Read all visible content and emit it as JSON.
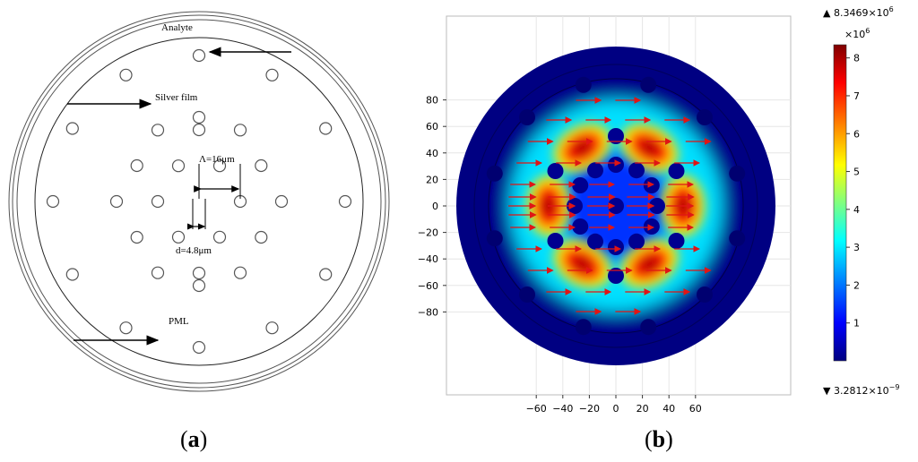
{
  "panel_a": {
    "caption_letter": "a",
    "labels": {
      "analyte": "Analyte",
      "silver_film": "Silver film",
      "pitch": "Λ=16μm",
      "hole_diameter": "d=4.8μm",
      "pml": "PML"
    }
  },
  "panel_b": {
    "caption_letter": "b",
    "x_ticks": [
      "-60",
      "-40",
      "-20",
      "0",
      "20",
      "40",
      "60"
    ],
    "y_ticks": [
      "80",
      "60",
      "40",
      "20",
      "0",
      "-20",
      "-40",
      "-60",
      "-80"
    ],
    "colorbar": {
      "max_label": "▲ 8.3469×10",
      "max_exp": "6",
      "scale_label": "×10",
      "scale_exp": "6",
      "ticks": [
        "8",
        "7",
        "6",
        "5",
        "4",
        "3",
        "2",
        "1"
      ],
      "min_label": "▼ 3.2812×10",
      "min_exp": "−9",
      "colors": [
        "#00007f",
        "#0000ff",
        "#00ffff",
        "#ffff00",
        "#ff0000",
        "#7f0000"
      ]
    }
  }
}
